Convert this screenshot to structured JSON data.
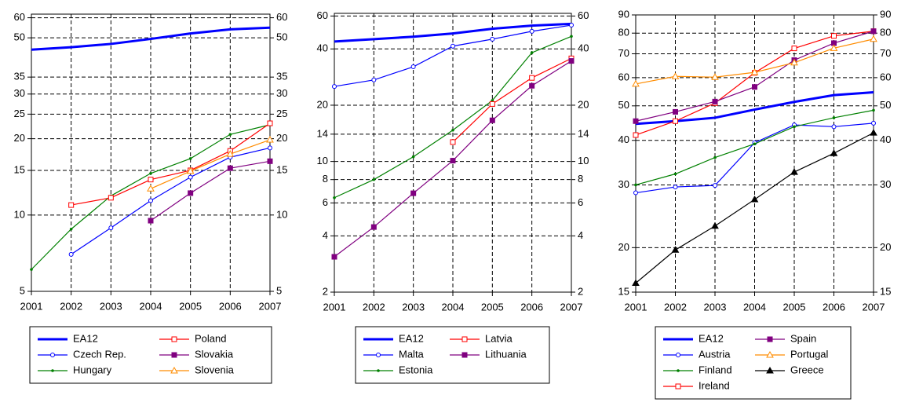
{
  "chart_data": [
    {
      "type": "line",
      "log_scale": true,
      "grid": true,
      "legend": "below",
      "x": [
        2001,
        2002,
        2003,
        2004,
        2005,
        2006,
        2007
      ],
      "xlim": [
        2001,
        2007
      ],
      "xticks": [
        2001,
        2002,
        2003,
        2004,
        2005,
        2006,
        2007
      ],
      "ylim": [
        5,
        62
      ],
      "yticks": [
        5,
        10,
        15,
        20,
        25,
        30,
        35,
        50,
        60
      ],
      "series": [
        {
          "name": "EA12",
          "color": "#0000ff",
          "style": "thick",
          "marker": "none",
          "values": [
            44.9,
            45.9,
            47.3,
            49.5,
            52,
            54,
            54.8
          ]
        },
        {
          "name": "Czech Rep.",
          "color": "#0000ff",
          "marker": "open-circle",
          "values": [
            null,
            7.0,
            8.9,
            11.4,
            14.1,
            16.9,
            18.4
          ]
        },
        {
          "name": "Hungary",
          "color": "#008000",
          "marker": "dot",
          "values": [
            6.1,
            8.8,
            11.9,
            14.6,
            16.7,
            20.8,
            22.7
          ]
        },
        {
          "name": "Poland",
          "color": "#ff0000",
          "marker": "open-square",
          "values": [
            null,
            10.95,
            11.7,
            13.8,
            15,
            17.9,
            23
          ]
        },
        {
          "name": "Slovakia",
          "color": "#800080",
          "marker": "square",
          "values": [
            null,
            null,
            null,
            9.5,
            12.2,
            15.3,
            16.3
          ]
        },
        {
          "name": "Slovenia",
          "color": "#ff8c00",
          "marker": "open-triangle",
          "values": [
            null,
            null,
            null,
            12.7,
            14.9,
            17.4,
            19.8
          ]
        }
      ]
    },
    {
      "type": "line",
      "log_scale": true,
      "grid": true,
      "legend": "below",
      "x": [
        2001,
        2002,
        2003,
        2004,
        2005,
        2006,
        2007
      ],
      "xlim": [
        2001,
        2007
      ],
      "xticks": [
        2001,
        2002,
        2003,
        2004,
        2005,
        2006,
        2007
      ],
      "ylim": [
        2,
        62
      ],
      "yticks": [
        2,
        4,
        6,
        8,
        10,
        14,
        20,
        40,
        60
      ],
      "series": [
        {
          "name": "EA12",
          "color": "#0000ff",
          "style": "thick",
          "marker": "none",
          "values": [
            43.8,
            45.1,
            46.5,
            48.4,
            51.3,
            53.3,
            54.5
          ]
        },
        {
          "name": "Malta",
          "color": "#0000ff",
          "marker": "open-circle",
          "values": [
            25.2,
            27.3,
            32.1,
            41.4,
            45.1,
            49.7,
            53.6
          ]
        },
        {
          "name": "Estonia",
          "color": "#008000",
          "marker": "dot",
          "values": [
            6.4,
            8.0,
            10.6,
            14.7,
            21.2,
            38.2,
            46.7
          ]
        },
        {
          "name": "Latvia",
          "color": "#ff0000",
          "marker": "open-square",
          "values": [
            null,
            null,
            null,
            12.7,
            20.3,
            28.0,
            35.6
          ]
        },
        {
          "name": "Lithuania",
          "color": "#800080",
          "marker": "square",
          "values": [
            3.09,
            4.46,
            6.76,
            10.1,
            16.6,
            25.4,
            34.5
          ]
        }
      ]
    },
    {
      "type": "line",
      "log_scale": true,
      "grid": true,
      "legend": "below",
      "x": [
        2001,
        2002,
        2003,
        2004,
        2005,
        2006,
        2007
      ],
      "xlim": [
        2001,
        2007
      ],
      "xticks": [
        2001,
        2002,
        2003,
        2004,
        2005,
        2006,
        2007
      ],
      "ylim": [
        15,
        90
      ],
      "yticks": [
        15,
        20,
        30,
        40,
        50,
        60,
        70,
        80,
        90
      ],
      "series": [
        {
          "name": "EA12",
          "color": "#0000ff",
          "style": "thick",
          "marker": "none",
          "values": [
            44.5,
            45.3,
            46.3,
            48.8,
            51.3,
            53.6,
            54.6
          ]
        },
        {
          "name": "Austria",
          "color": "#0000ff",
          "marker": "open-circle",
          "values": [
            28.5,
            29.6,
            29.9,
            39.4,
            44.2,
            43.7,
            44.7
          ]
        },
        {
          "name": "Finland",
          "color": "#008000",
          "marker": "dot",
          "values": [
            30.0,
            32.2,
            35.8,
            39.1,
            43.7,
            46.3,
            48.6
          ]
        },
        {
          "name": "Ireland",
          "color": "#ff0000",
          "marker": "open-square",
          "values": [
            41.4,
            45.3,
            50.9,
            61.9,
            72.5,
            78.6,
            81
          ]
        },
        {
          "name": "Spain",
          "color": "#800080",
          "marker": "square",
          "values": [
            45.3,
            48.1,
            51.4,
            56.5,
            67.2,
            75,
            81
          ]
        },
        {
          "name": "Portugal",
          "color": "#ff8c00",
          "marker": "open-triangle",
          "values": [
            57.6,
            60.5,
            60.2,
            62.1,
            66.1,
            72.6,
            77
          ]
        },
        {
          "name": "Greece",
          "color": "#000000",
          "marker": "triangle",
          "values": [
            15.9,
            19.7,
            23.0,
            27.3,
            32.6,
            36.8,
            42
          ]
        }
      ]
    }
  ]
}
